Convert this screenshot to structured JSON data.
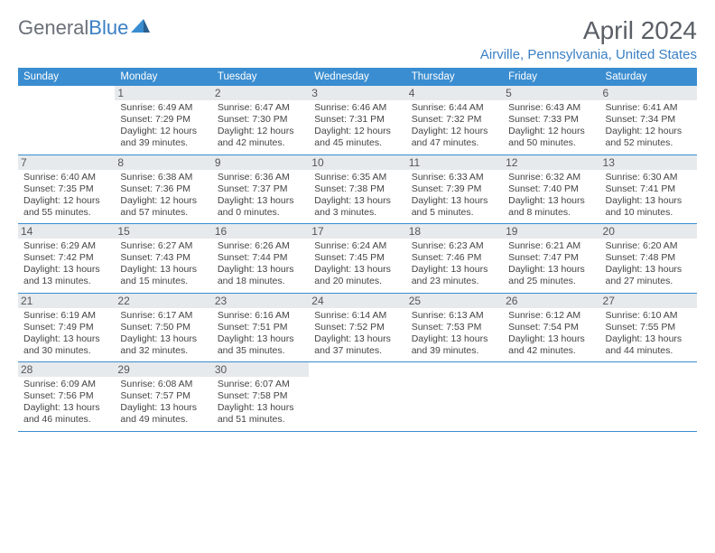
{
  "branding": {
    "logo_general": "General",
    "logo_blue": "Blue",
    "logo_icon_color1": "#3a8dd0",
    "logo_icon_color2": "#2a5f8f"
  },
  "header": {
    "month_title": "April 2024",
    "location": "Airville, Pennsylvania, United States"
  },
  "colors": {
    "header_bg": "#3a8dd0",
    "header_text": "#ffffff",
    "row_border": "#3a8dd0",
    "daynum_bg": "#e7eaed",
    "text": "#444444",
    "title": "#5a5f66",
    "location": "#3a7fc4"
  },
  "day_names": [
    "Sunday",
    "Monday",
    "Tuesday",
    "Wednesday",
    "Thursday",
    "Friday",
    "Saturday"
  ],
  "layout": {
    "first_weekday_offset": 1,
    "days_in_month": 30
  },
  "days": [
    {
      "n": 1,
      "sunrise": "6:49 AM",
      "sunset": "7:29 PM",
      "daylight": "12 hours and 39 minutes."
    },
    {
      "n": 2,
      "sunrise": "6:47 AM",
      "sunset": "7:30 PM",
      "daylight": "12 hours and 42 minutes."
    },
    {
      "n": 3,
      "sunrise": "6:46 AM",
      "sunset": "7:31 PM",
      "daylight": "12 hours and 45 minutes."
    },
    {
      "n": 4,
      "sunrise": "6:44 AM",
      "sunset": "7:32 PM",
      "daylight": "12 hours and 47 minutes."
    },
    {
      "n": 5,
      "sunrise": "6:43 AM",
      "sunset": "7:33 PM",
      "daylight": "12 hours and 50 minutes."
    },
    {
      "n": 6,
      "sunrise": "6:41 AM",
      "sunset": "7:34 PM",
      "daylight": "12 hours and 52 minutes."
    },
    {
      "n": 7,
      "sunrise": "6:40 AM",
      "sunset": "7:35 PM",
      "daylight": "12 hours and 55 minutes."
    },
    {
      "n": 8,
      "sunrise": "6:38 AM",
      "sunset": "7:36 PM",
      "daylight": "12 hours and 57 minutes."
    },
    {
      "n": 9,
      "sunrise": "6:36 AM",
      "sunset": "7:37 PM",
      "daylight": "13 hours and 0 minutes."
    },
    {
      "n": 10,
      "sunrise": "6:35 AM",
      "sunset": "7:38 PM",
      "daylight": "13 hours and 3 minutes."
    },
    {
      "n": 11,
      "sunrise": "6:33 AM",
      "sunset": "7:39 PM",
      "daylight": "13 hours and 5 minutes."
    },
    {
      "n": 12,
      "sunrise": "6:32 AM",
      "sunset": "7:40 PM",
      "daylight": "13 hours and 8 minutes."
    },
    {
      "n": 13,
      "sunrise": "6:30 AM",
      "sunset": "7:41 PM",
      "daylight": "13 hours and 10 minutes."
    },
    {
      "n": 14,
      "sunrise": "6:29 AM",
      "sunset": "7:42 PM",
      "daylight": "13 hours and 13 minutes."
    },
    {
      "n": 15,
      "sunrise": "6:27 AM",
      "sunset": "7:43 PM",
      "daylight": "13 hours and 15 minutes."
    },
    {
      "n": 16,
      "sunrise": "6:26 AM",
      "sunset": "7:44 PM",
      "daylight": "13 hours and 18 minutes."
    },
    {
      "n": 17,
      "sunrise": "6:24 AM",
      "sunset": "7:45 PM",
      "daylight": "13 hours and 20 minutes."
    },
    {
      "n": 18,
      "sunrise": "6:23 AM",
      "sunset": "7:46 PM",
      "daylight": "13 hours and 23 minutes."
    },
    {
      "n": 19,
      "sunrise": "6:21 AM",
      "sunset": "7:47 PM",
      "daylight": "13 hours and 25 minutes."
    },
    {
      "n": 20,
      "sunrise": "6:20 AM",
      "sunset": "7:48 PM",
      "daylight": "13 hours and 27 minutes."
    },
    {
      "n": 21,
      "sunrise": "6:19 AM",
      "sunset": "7:49 PM",
      "daylight": "13 hours and 30 minutes."
    },
    {
      "n": 22,
      "sunrise": "6:17 AM",
      "sunset": "7:50 PM",
      "daylight": "13 hours and 32 minutes."
    },
    {
      "n": 23,
      "sunrise": "6:16 AM",
      "sunset": "7:51 PM",
      "daylight": "13 hours and 35 minutes."
    },
    {
      "n": 24,
      "sunrise": "6:14 AM",
      "sunset": "7:52 PM",
      "daylight": "13 hours and 37 minutes."
    },
    {
      "n": 25,
      "sunrise": "6:13 AM",
      "sunset": "7:53 PM",
      "daylight": "13 hours and 39 minutes."
    },
    {
      "n": 26,
      "sunrise": "6:12 AM",
      "sunset": "7:54 PM",
      "daylight": "13 hours and 42 minutes."
    },
    {
      "n": 27,
      "sunrise": "6:10 AM",
      "sunset": "7:55 PM",
      "daylight": "13 hours and 44 minutes."
    },
    {
      "n": 28,
      "sunrise": "6:09 AM",
      "sunset": "7:56 PM",
      "daylight": "13 hours and 46 minutes."
    },
    {
      "n": 29,
      "sunrise": "6:08 AM",
      "sunset": "7:57 PM",
      "daylight": "13 hours and 49 minutes."
    },
    {
      "n": 30,
      "sunrise": "6:07 AM",
      "sunset": "7:58 PM",
      "daylight": "13 hours and 51 minutes."
    }
  ],
  "labels": {
    "sunrise": "Sunrise:",
    "sunset": "Sunset:",
    "daylight": "Daylight:"
  }
}
